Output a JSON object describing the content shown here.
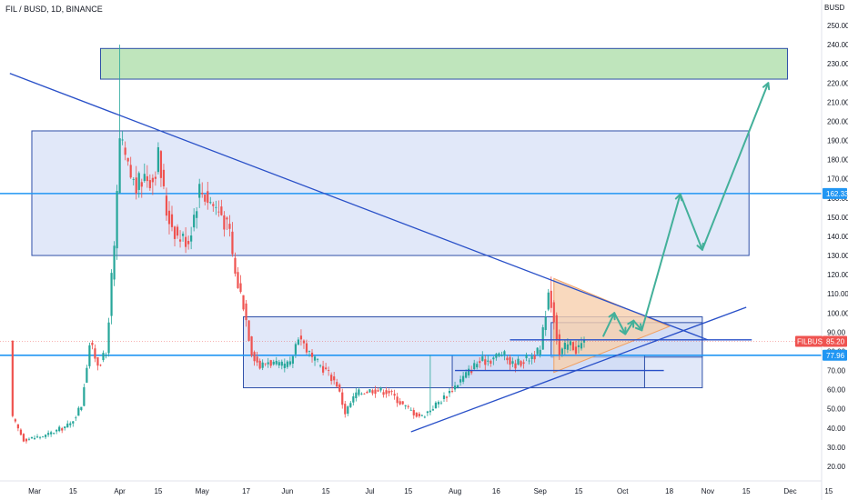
{
  "header": {
    "symbol_title": "FIL / BUSD, 1D, BINANCE",
    "currency": "BUSD"
  },
  "colors": {
    "up": "#26a69a",
    "down": "#ef5350",
    "trendline": "#2950c8",
    "level": "#2196f3",
    "box_fill": "#c9d5f4",
    "box_stroke": "#2e4fa8",
    "target_fill": "#bfe5bc",
    "target_stroke": "#2e4fa8",
    "triangle_fill": "#f7cfae",
    "triangle_stroke": "#f0a062",
    "arrow": "#43b09a",
    "price_tag": "#ef5350"
  },
  "chart_data": {
    "type": "candlestick",
    "title": "FIL / BUSD, 1D, BINANCE",
    "y_unit": "BUSD",
    "ylim": [
      12,
      260
    ],
    "y_ticks": [
      20,
      30,
      40,
      50,
      60,
      70,
      80,
      90,
      100,
      110,
      120,
      130,
      140,
      150,
      160,
      170,
      180,
      190,
      200,
      210,
      220,
      230,
      240,
      250
    ],
    "x_ticks": [
      "Mar",
      "15",
      "Apr",
      "15",
      "May",
      "17",
      "Jun",
      "15",
      "Jul",
      "15",
      "Aug",
      "16",
      "Sep",
      "15",
      "Oct",
      "18",
      "Nov",
      "15",
      "Dec",
      "15"
    ],
    "x_tick_dates": [
      "2021-03-01",
      "2021-03-15",
      "2021-04-01",
      "2021-04-15",
      "2021-05-01",
      "2021-05-17",
      "2021-06-01",
      "2021-06-15",
      "2021-07-01",
      "2021-07-15",
      "2021-08-01",
      "2021-08-16",
      "2021-09-01",
      "2021-09-15",
      "2021-10-01",
      "2021-10-18",
      "2021-11-01",
      "2021-11-15",
      "2021-12-01",
      "2021-12-15"
    ],
    "price_path_points": [
      [
        "2021-02-21",
        45
      ],
      [
        "2021-02-25",
        34
      ],
      [
        "2021-03-05",
        36
      ],
      [
        "2021-03-14",
        42
      ],
      [
        "2021-03-18",
        52
      ],
      [
        "2021-03-21",
        84
      ],
      [
        "2021-03-24",
        74
      ],
      [
        "2021-03-27",
        78
      ],
      [
        "2021-03-29",
        118
      ],
      [
        "2021-03-30",
        132
      ],
      [
        "2021-04-01",
        190
      ],
      [
        "2021-04-04",
        175
      ],
      [
        "2021-04-07",
        165
      ],
      [
        "2021-04-10",
        172
      ],
      [
        "2021-04-13",
        170
      ],
      [
        "2021-04-15",
        182
      ],
      [
        "2021-04-18",
        153
      ],
      [
        "2021-04-22",
        140
      ],
      [
        "2021-04-26",
        138
      ],
      [
        "2021-04-30",
        165
      ],
      [
        "2021-05-04",
        158
      ],
      [
        "2021-05-08",
        152
      ],
      [
        "2021-05-11",
        141
      ],
      [
        "2021-05-13",
        120
      ],
      [
        "2021-05-16",
        105
      ],
      [
        "2021-05-19",
        80
      ],
      [
        "2021-05-22",
        72
      ],
      [
        "2021-05-25",
        75
      ],
      [
        "2021-05-29",
        72
      ],
      [
        "2021-06-02",
        73
      ],
      [
        "2021-06-05",
        89
      ],
      [
        "2021-06-10",
        76
      ],
      [
        "2021-06-15",
        70
      ],
      [
        "2021-06-19",
        63
      ],
      [
        "2021-06-22",
        48
      ],
      [
        "2021-06-26",
        58
      ],
      [
        "2021-07-02",
        60
      ],
      [
        "2021-07-08",
        59
      ],
      [
        "2021-07-13",
        52
      ],
      [
        "2021-07-18",
        47
      ],
      [
        "2021-07-20",
        46
      ],
      [
        "2021-07-24",
        51
      ],
      [
        "2021-07-28",
        56
      ],
      [
        "2021-08-01",
        62
      ],
      [
        "2021-08-05",
        68
      ],
      [
        "2021-08-09",
        74
      ],
      [
        "2021-08-14",
        76
      ],
      [
        "2021-08-18",
        79
      ],
      [
        "2021-08-22",
        73
      ],
      [
        "2021-08-27",
        76
      ],
      [
        "2021-09-01",
        80
      ],
      [
        "2021-09-02",
        90
      ],
      [
        "2021-09-04",
        112
      ],
      [
        "2021-09-06",
        98
      ],
      [
        "2021-09-08",
        78
      ],
      [
        "2021-09-10",
        82
      ],
      [
        "2021-09-12",
        84
      ],
      [
        "2021-09-14",
        81
      ],
      [
        "2021-09-17",
        85
      ]
    ],
    "horizontal_levels": [
      162.33,
      77.96
    ],
    "last_price": {
      "label": "FILBUSD",
      "value": "85.20"
    },
    "level_labels": [
      "162.33",
      "77.96"
    ],
    "zones": [
      {
        "name": "target-zone",
        "top": 238,
        "bottom": 222,
        "start": "2021-03-25",
        "end": "2021-11-30"
      },
      {
        "name": "upper-zone",
        "top": 195,
        "bottom": 130,
        "start": "2021-02-28",
        "end": "2021-11-16"
      },
      {
        "name": "mid-zone",
        "top": 98,
        "bottom": 61,
        "start": "2021-05-16",
        "end": "2021-10-30"
      },
      {
        "name": "consolidation-zone",
        "top": 95,
        "bottom": 77,
        "start": "2021-09-05",
        "end": "2021-10-30"
      },
      {
        "name": "lower-zone",
        "top": 78,
        "bottom": 61,
        "start": "2021-07-31",
        "end": "2021-10-09"
      }
    ],
    "triangle": [
      [
        "2021-09-06",
        118
      ],
      [
        "2021-10-18",
        93
      ],
      [
        "2021-09-06",
        69
      ]
    ],
    "trendlines": [
      {
        "name": "descending-resistance",
        "from": [
          "2021-02-20",
          225
        ],
        "to": [
          "2021-11-01",
          86
        ]
      },
      {
        "name": "ascending-support",
        "from": [
          "2021-07-16",
          38
        ],
        "to": [
          "2021-11-15",
          103
        ]
      },
      {
        "name": "range-top",
        "from": [
          "2021-08-21",
          86
        ],
        "to": [
          "2021-11-17",
          86
        ]
      },
      {
        "name": "range-bottom",
        "from": [
          "2021-08-01",
          70
        ],
        "to": [
          "2021-10-16",
          70
        ]
      }
    ],
    "projection_path": [
      [
        "2021-09-24",
        88
      ],
      [
        "2021-09-28",
        100
      ],
      [
        "2021-10-02",
        89
      ],
      [
        "2021-10-05",
        96
      ],
      [
        "2021-10-08",
        91
      ],
      [
        "2021-10-22",
        162
      ],
      [
        "2021-10-30",
        133
      ],
      [
        "2021-11-23",
        220
      ]
    ]
  }
}
